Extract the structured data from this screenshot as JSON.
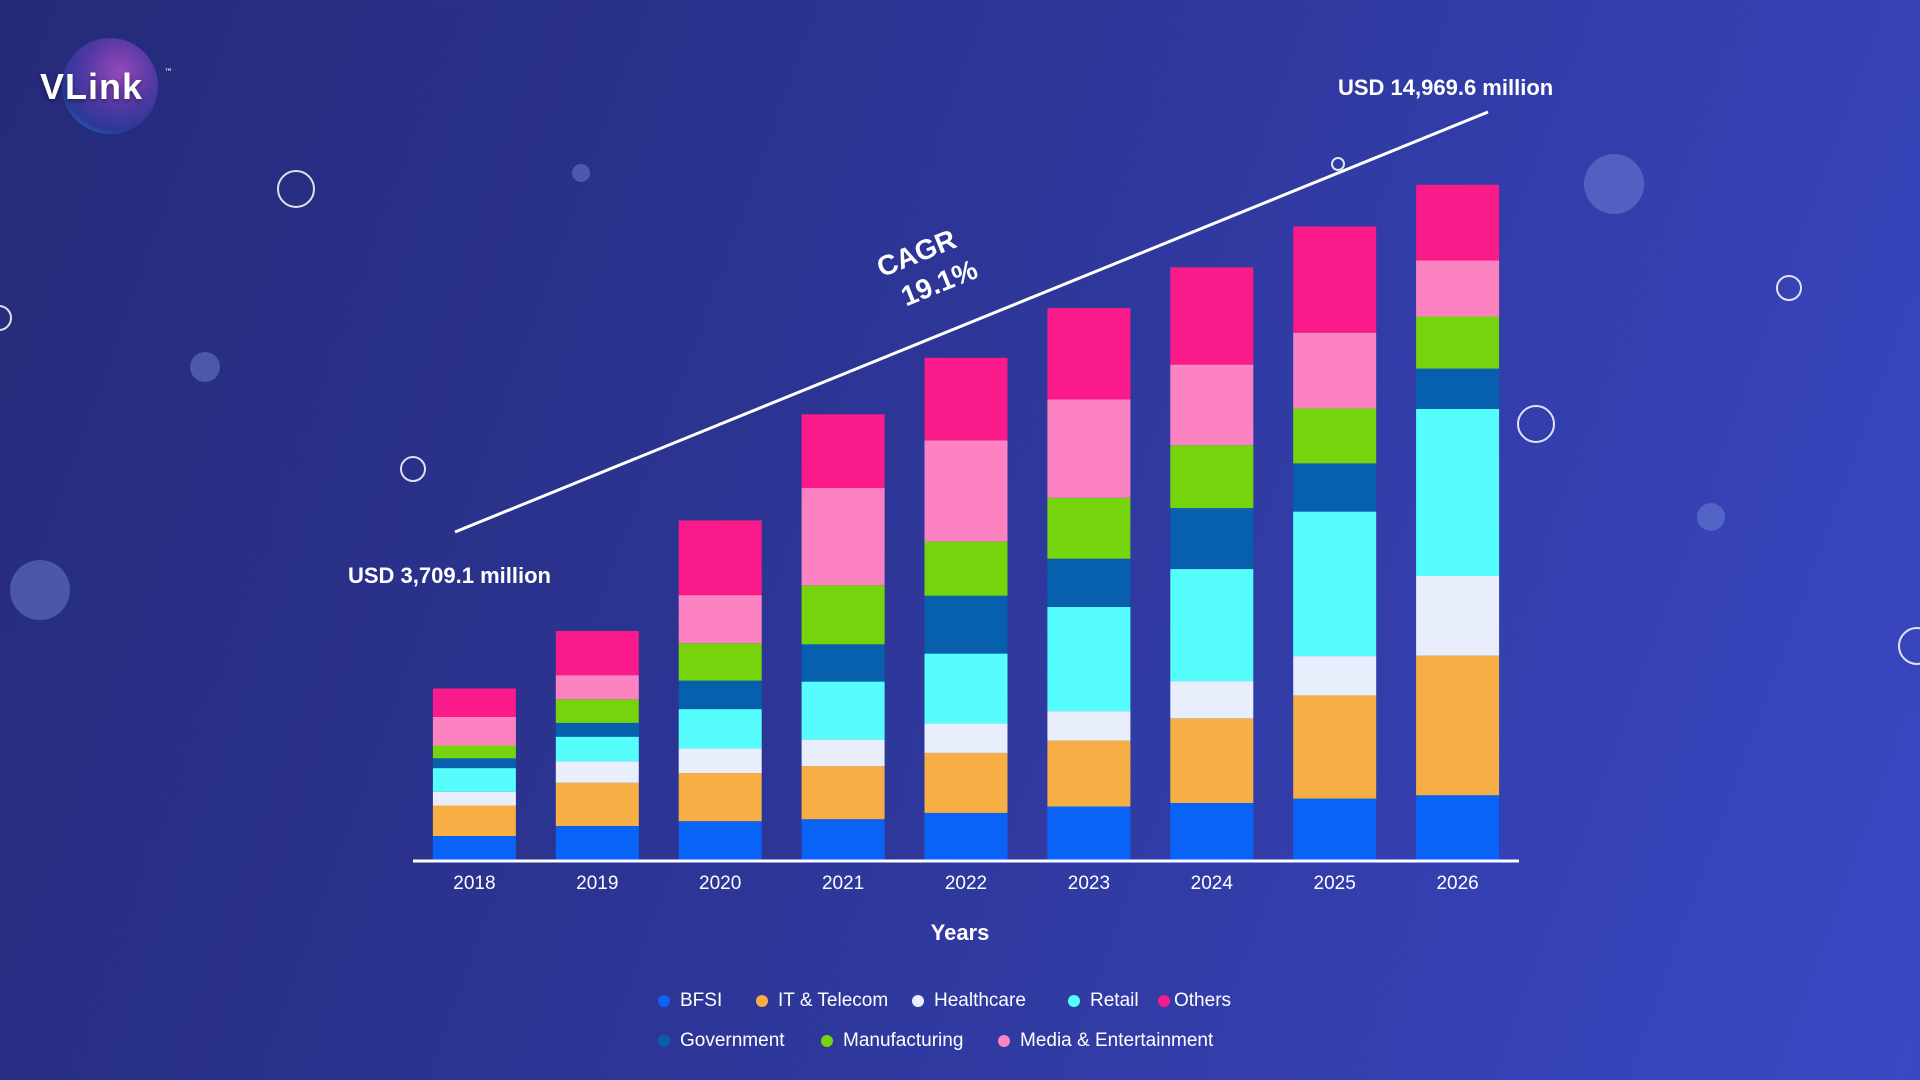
{
  "brand": {
    "name": "VLink",
    "tm": "™"
  },
  "chart_data": {
    "type": "bar",
    "stacked": true,
    "categories": [
      "2018",
      "2019",
      "2020",
      "2021",
      "2022",
      "2023",
      "2024",
      "2025",
      "2026"
    ],
    "xlabel": "Years",
    "series": [
      {
        "name": "BFSI",
        "color": "#0a63f7",
        "values": [
          245,
          345,
          395,
          415,
          480,
          545,
          580,
          625,
          660
        ]
      },
      {
        "name": "IT & Telecom",
        "color": "#f6ae45",
        "values": [
          310,
          440,
          490,
          540,
          610,
          670,
          860,
          1050,
          1420
        ]
      },
      {
        "name": "Healthcare",
        "color": "#e8eefc",
        "values": [
          140,
          220,
          250,
          270,
          300,
          300,
          380,
          400,
          810
        ]
      },
      {
        "name": "Retail",
        "color": "#56fdfd",
        "values": [
          240,
          250,
          400,
          590,
          710,
          1060,
          1140,
          1470,
          1700
        ]
      },
      {
        "name": "Government",
        "color": "#0660ad",
        "values": [
          100,
          140,
          290,
          380,
          590,
          490,
          620,
          490,
          410
        ]
      },
      {
        "name": "Manufacturing",
        "color": "#76d40d",
        "values": [
          130,
          240,
          380,
          600,
          550,
          620,
          640,
          560,
          530
        ]
      },
      {
        "name": "Media & Entertainment",
        "color": "#fc82c2",
        "values": [
          290,
          245,
          490,
          990,
          1030,
          1000,
          820,
          770,
          570
        ]
      },
      {
        "name": "Others",
        "color": "#fb1a8a",
        "values": [
          290,
          450,
          760,
          750,
          840,
          930,
          990,
          1080,
          770
        ]
      }
    ],
    "ylim": [
      0,
      7000
    ],
    "annotations": {
      "start_value": "USD 3,709.1 million",
      "end_value": "USD 14,969.6 million",
      "cagr_label": "CAGR",
      "cagr_value": "19.1%"
    }
  },
  "legend": {
    "row1": [
      "BFSI",
      "IT & Telecom",
      "Healthcare",
      "Retail",
      "Others"
    ],
    "row2": [
      "Government",
      "Manufacturing",
      "Media & Entertainment"
    ]
  }
}
